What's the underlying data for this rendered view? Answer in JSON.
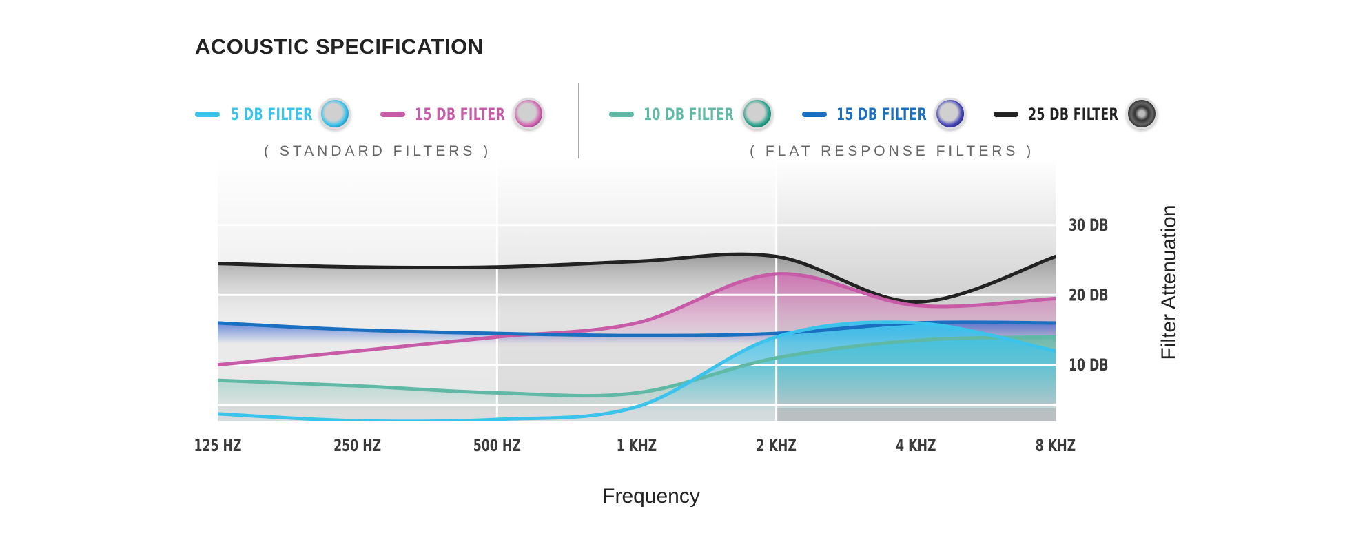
{
  "title": "ACOUSTIC SPECIFICATION",
  "legend": {
    "standard": [
      {
        "label": "5 DB FILTER",
        "color": "#3cc3ec"
      },
      {
        "label": "15 DB FILTER",
        "color": "#c85ba8"
      }
    ],
    "flat": [
      {
        "label": "10 DB FILTER",
        "color": "#5fb9a5"
      },
      {
        "label": "15 DB FILTER",
        "color": "#1a6fc0"
      },
      {
        "label": "25 DB FILTER",
        "color": "#222222"
      }
    ],
    "standard_group_label": "( STANDARD FILTERS )",
    "flat_group_label": "( FLAT RESPONSE FILTERS )"
  },
  "chart_data": {
    "type": "line",
    "xlabel": "Frequency",
    "ylabel": "Filter Attenuation",
    "categories": [
      "125 HZ",
      "250 HZ",
      "500 HZ",
      "1 KHZ",
      "2 KHZ",
      "4 KHZ",
      "8 KHZ"
    ],
    "y_ticks": [
      {
        "value": 10,
        "label": "10 DB"
      },
      {
        "value": 20,
        "label": "20 DB"
      },
      {
        "value": 30,
        "label": "30 DB"
      }
    ],
    "ylim": [
      0,
      36
    ],
    "grid": true,
    "legend_position": "top",
    "series": [
      {
        "name": "25 DB FILTER",
        "color": "#222222",
        "values": [
          24.5,
          24,
          24,
          24.8,
          25.5,
          19,
          25.5
        ]
      },
      {
        "name": "15 DB FILTER",
        "color": "#c85ba8",
        "values": [
          10,
          12,
          14,
          16,
          23,
          18.5,
          19.5
        ]
      },
      {
        "name": "15 DB FILTER",
        "color": "#1a6fc0",
        "values": [
          16,
          15,
          14.5,
          14.2,
          14.5,
          16,
          16
        ]
      },
      {
        "name": "10 DB FILTER",
        "color": "#5fb9a5",
        "values": [
          7.8,
          7,
          6,
          6,
          11,
          13.5,
          14
        ]
      },
      {
        "name": "5 DB FILTER",
        "color": "#3cc3ec",
        "values": [
          3,
          2,
          2.2,
          4,
          14,
          16,
          12
        ]
      }
    ]
  }
}
